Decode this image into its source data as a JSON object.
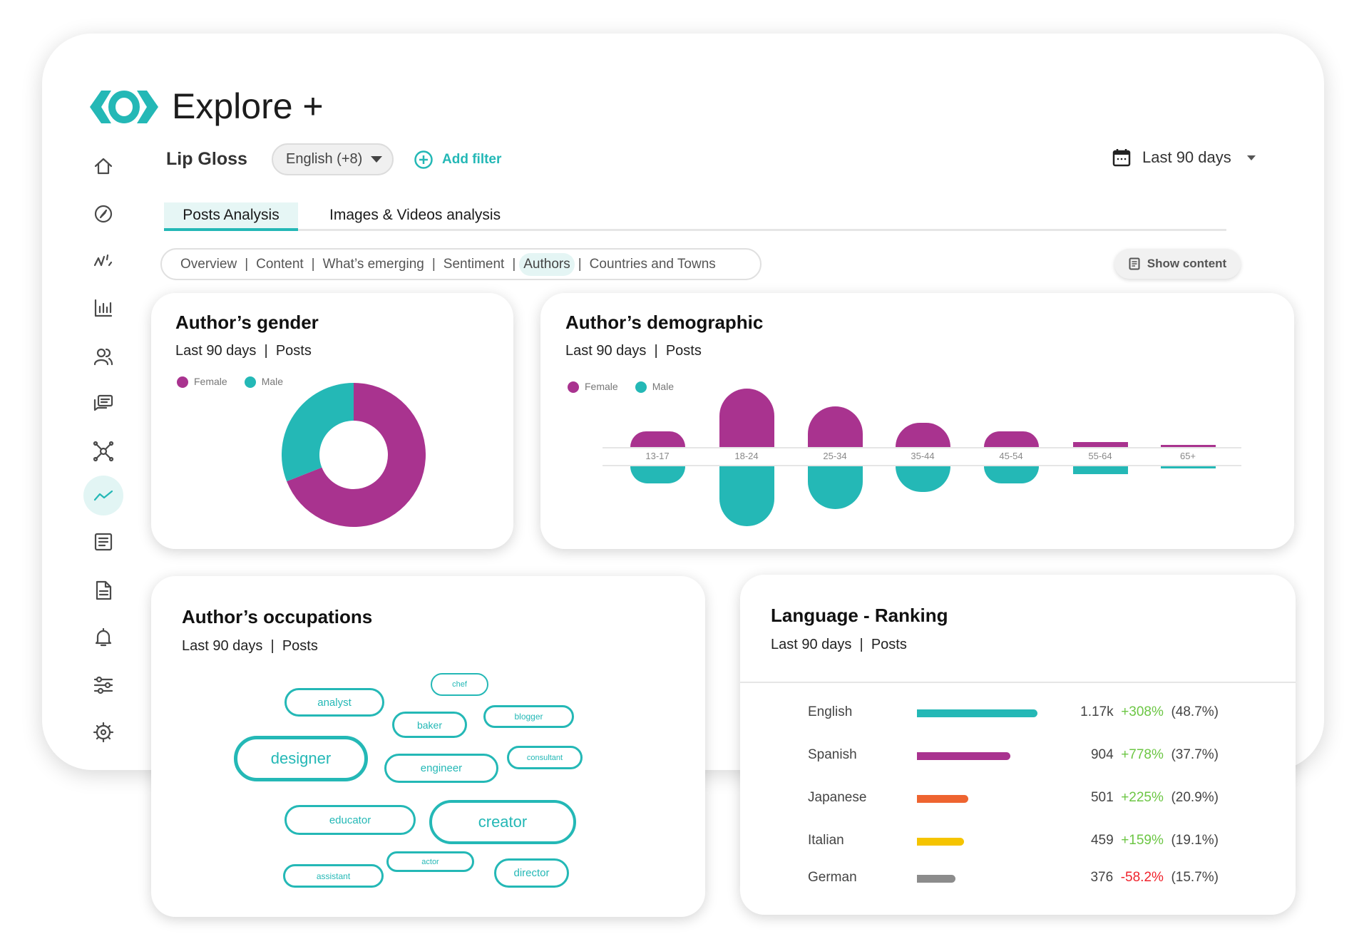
{
  "app": {
    "title": "Explore +"
  },
  "sidebar": {
    "items": [
      {
        "icon": "home-icon",
        "label": ""
      },
      {
        "icon": "compass-icon"
      },
      {
        "icon": "trend-wave-icon"
      },
      {
        "icon": "bar-chart-icon"
      },
      {
        "icon": "users-icon"
      },
      {
        "icon": "chat-icon"
      },
      {
        "icon": "network-icon"
      },
      {
        "icon": "trend-line-icon",
        "active": true
      },
      {
        "icon": "list-document-icon"
      },
      {
        "icon": "document-icon"
      },
      {
        "icon": "bell-icon"
      },
      {
        "icon": "sliders-icon"
      },
      {
        "icon": "gear-icon"
      }
    ]
  },
  "filters": {
    "topic": "Lip Gloss",
    "language": "English (+8)",
    "add_filter": "Add filter",
    "date_range": "Last 90 days"
  },
  "tabs": [
    {
      "label": "Posts Analysis",
      "active": true
    },
    {
      "label": "Images & Videos analysis"
    }
  ],
  "subnav": [
    {
      "label": "Overview"
    },
    {
      "label": "Content"
    },
    {
      "label": "What’s emerging"
    },
    {
      "label": "Sentiment"
    },
    {
      "label": "Authors",
      "active": true
    },
    {
      "label": "Countries and Towns"
    }
  ],
  "show_content": "Show content",
  "colors": {
    "teal": "#24b8b6",
    "purple": "#a9338f",
    "orange": "#ee6430",
    "yellow": "#f5c400",
    "grey": "#8c8c8c",
    "positive": "#6cc644",
    "negative": "#f0222b"
  },
  "gender": {
    "title": "Author’s gender",
    "period": "Last 90 days",
    "metric": "Posts",
    "legend": [
      "Female",
      "Male"
    ]
  },
  "demographic": {
    "title": "Author’s demographic",
    "period": "Last 90 days",
    "metric": "Posts",
    "legend": [
      "Female",
      "Male"
    ]
  },
  "occupations": {
    "title": "Author’s occupations",
    "period": "Last 90 days",
    "metric": "Posts",
    "tags": [
      "analyst",
      "chef",
      "baker",
      "blogger",
      "designer",
      "engineer",
      "consultant",
      "educator",
      "creator",
      "actor",
      "assistant",
      "director"
    ]
  },
  "language": {
    "title": "Language - Ranking",
    "period": "Last 90 days",
    "metric": "Posts",
    "rows": [
      {
        "name": "English",
        "count": "1.17k",
        "change": "+308%",
        "share": "(48.7%)"
      },
      {
        "name": "Spanish",
        "count": "904",
        "change": "+778%",
        "share": "(37.7%)"
      },
      {
        "name": "Japanese",
        "count": "501",
        "change": "+225%",
        "share": "(20.9%)"
      },
      {
        "name": "Italian",
        "count": "459",
        "change": "+159%",
        "share": "(19.1%)"
      },
      {
        "name": "German",
        "count": "376",
        "change": "-58.2%",
        "share": "(15.7%)"
      }
    ]
  },
  "chart_data": [
    {
      "type": "pie",
      "title": "Author’s gender",
      "categories": [
        "Female",
        "Male"
      ],
      "values": [
        69,
        31
      ],
      "colors": [
        "#a9338f",
        "#24b8b6"
      ],
      "legend": "top-left"
    },
    {
      "type": "bar",
      "title": "Author’s demographic",
      "categories": [
        "13-17",
        "18-24",
        "25-34",
        "35-44",
        "45-54",
        "55-64",
        "65+"
      ],
      "series": [
        {
          "name": "Female",
          "values": [
            27,
            100,
            70,
            42,
            27,
            9,
            3
          ]
        },
        {
          "name": "Male",
          "values": [
            29,
            100,
            71,
            43,
            29,
            13,
            4
          ]
        }
      ],
      "legend": "top-left"
    },
    {
      "type": "bar",
      "title": "Language - Ranking",
      "categories": [
        "English",
        "Spanish",
        "Japanese",
        "Italian",
        "German"
      ],
      "values": [
        1170,
        904,
        501,
        459,
        376
      ],
      "colors": [
        "#24b8b6",
        "#a9338f",
        "#ee6430",
        "#f5c400",
        "#8c8c8c"
      ]
    }
  ]
}
